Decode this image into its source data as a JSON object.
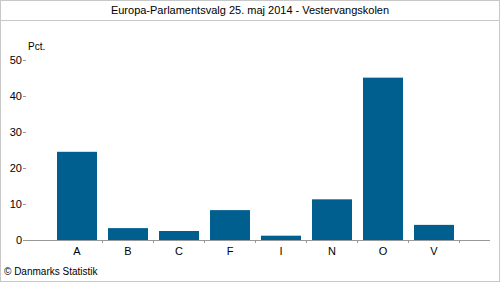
{
  "chart_data": {
    "type": "bar",
    "title": "Europa-Parlamentsvalg 25. maj 2014 - Vestervangskolen",
    "y_label": "Pct.",
    "source": "© Danmarks Statistik",
    "categories": [
      "A",
      "B",
      "C",
      "F",
      "I",
      "N",
      "O",
      "V"
    ],
    "values": [
      24.5,
      3.3,
      2.5,
      8.3,
      1.2,
      11.3,
      45.1,
      4.2
    ],
    "color": "#005f8e",
    "ylim": [
      0,
      50
    ],
    "yticks": [
      0,
      10,
      20,
      30,
      40,
      50
    ],
    "grid": false
  }
}
